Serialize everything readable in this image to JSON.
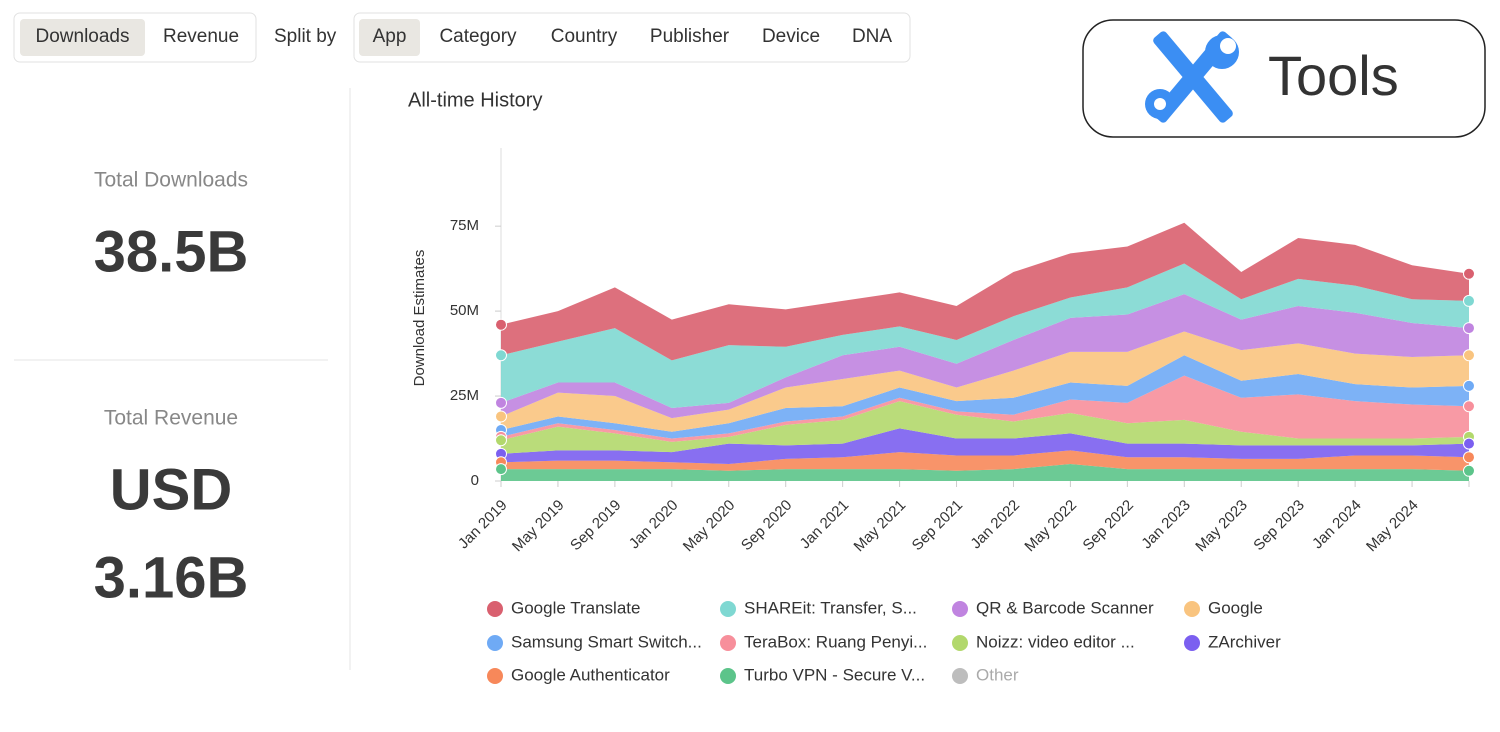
{
  "header": {
    "metric_tabs": [
      "Downloads",
      "Revenue"
    ],
    "selected_metric": 0,
    "split_label": "Split by",
    "split_tabs": [
      "App",
      "Category",
      "Country",
      "Publisher",
      "Device",
      "DNA"
    ],
    "selected_split": 0
  },
  "badge": {
    "label": "Tools"
  },
  "summary": [
    {
      "label": "Total Downloads",
      "value": "38.5B"
    },
    {
      "label": "Total Revenue",
      "currency": "USD",
      "value": "3.16B"
    }
  ],
  "chart_data": {
    "type": "area",
    "stacked": true,
    "title": "All-time History",
    "y_label": "Download Estimates",
    "categories": [
      "Jan 2019",
      "May 2019",
      "Sep 2019",
      "Jan 2020",
      "May 2020",
      "Sep 2020",
      "Jan 2021",
      "May 2021",
      "Sep 2021",
      "Jan 2022",
      "May 2022",
      "Sep 2022",
      "Jan 2023",
      "May 2023",
      "Sep 2023",
      "Jan 2024",
      "May 2024",
      null
    ],
    "ylim": [
      0,
      98
    ],
    "yticks": [
      0,
      {
        "value": 25,
        "label": "25M"
      },
      {
        "value": 50,
        "label": "50M"
      },
      {
        "value": 75,
        "label": "75M"
      }
    ],
    "series": [
      {
        "name": "Google Translate",
        "color": "#d9606f",
        "values": [
          9,
          9,
          12,
          12,
          12,
          11,
          10,
          10,
          10,
          13,
          13,
          12,
          12,
          8,
          12,
          12,
          10,
          8
        ]
      },
      {
        "name": "SHAREit: Transfer, S...",
        "color": "#7fd8d2",
        "values": [
          14,
          12,
          16,
          14,
          17,
          9,
          6,
          6,
          7,
          7,
          6,
          8,
          9,
          6,
          8,
          8,
          7,
          8
        ]
      },
      {
        "name": "QR & Barcode Scanner",
        "color": "#c084e0",
        "values": [
          4,
          3,
          4,
          3,
          2,
          3,
          7,
          7,
          7,
          9,
          10,
          11,
          11,
          9,
          11,
          12,
          10,
          8
        ]
      },
      {
        "name": "Google",
        "color": "#f9c47f",
        "values": [
          4,
          7,
          8,
          4,
          4,
          6,
          8,
          5,
          4,
          8,
          9,
          10,
          7,
          9,
          9,
          9,
          9,
          9
        ]
      },
      {
        "name": "Samsung Smart Switch...",
        "color": "#6faaf5",
        "values": [
          2,
          2,
          2,
          2,
          3,
          4,
          3,
          3,
          3,
          5,
          5,
          5,
          6,
          5,
          6,
          5,
          5,
          6
        ]
      },
      {
        "name": "TeraBox: Ruang Penyi...",
        "color": "#f78f9b",
        "values": [
          1,
          1,
          1,
          1,
          1,
          1,
          1,
          1,
          1,
          2,
          4,
          6,
          13,
          10,
          13,
          11,
          10,
          9
        ]
      },
      {
        "name": "Noizz: video editor ...",
        "color": "#b2d86c",
        "values": [
          4,
          7,
          5,
          3,
          2,
          6,
          7,
          8,
          7,
          5,
          6,
          6,
          7,
          4,
          2,
          2,
          2,
          2
        ]
      },
      {
        "name": "ZArchiver",
        "color": "#7b5ff0",
        "values": [
          2.5,
          3,
          3,
          3,
          6,
          4,
          4,
          7,
          5,
          5,
          5,
          4,
          4,
          4,
          4,
          3,
          3,
          4
        ]
      },
      {
        "name": "Google Authenticator",
        "color": "#f7885a",
        "values": [
          2,
          2.5,
          2.5,
          2,
          2,
          3,
          3.5,
          5,
          4.5,
          4,
          4,
          3.5,
          3.5,
          3,
          3,
          4,
          4,
          4
        ]
      },
      {
        "name": "Turbo VPN - Secure V...",
        "color": "#5cc48a",
        "values": [
          3.5,
          3.5,
          3.5,
          3.5,
          3,
          3.5,
          3.5,
          3.5,
          3,
          3.5,
          5,
          3.5,
          3.5,
          3.5,
          3.5,
          3.5,
          3.5,
          3
        ]
      }
    ],
    "inactive_legend": [
      {
        "name": "Other",
        "color": "#bdbdbd"
      }
    ]
  }
}
